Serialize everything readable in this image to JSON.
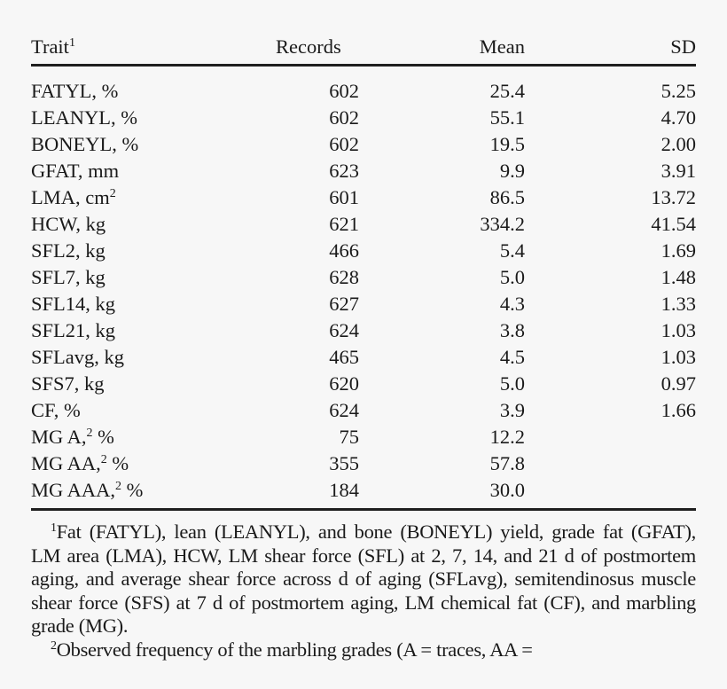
{
  "header": {
    "trait": "Trait",
    "trait_sup": "1",
    "records": "Records",
    "mean": "Mean",
    "sd": "SD"
  },
  "rows": [
    {
      "trait": "FATYL, %",
      "sup": "",
      "suffix": "",
      "records": "602",
      "mean": "25.4",
      "sd": "5.25"
    },
    {
      "trait": "LEANYL, %",
      "sup": "",
      "suffix": "",
      "records": "602",
      "mean": "55.1",
      "sd": "4.70"
    },
    {
      "trait": "BONEYL, %",
      "sup": "",
      "suffix": "",
      "records": "602",
      "mean": "19.5",
      "sd": "2.00"
    },
    {
      "trait": "GFAT, mm",
      "sup": "",
      "suffix": "",
      "records": "623",
      "mean": "9.9",
      "sd": "3.91"
    },
    {
      "trait": "LMA, cm",
      "sup": "2",
      "suffix": "",
      "records": "601",
      "mean": "86.5",
      "sd": "13.72"
    },
    {
      "trait": "HCW, kg",
      "sup": "",
      "suffix": "",
      "records": "621",
      "mean": "334.2",
      "sd": "41.54"
    },
    {
      "trait": "SFL2, kg",
      "sup": "",
      "suffix": "",
      "records": "466",
      "mean": "5.4",
      "sd": "1.69"
    },
    {
      "trait": "SFL7, kg",
      "sup": "",
      "suffix": "",
      "records": "628",
      "mean": "5.0",
      "sd": "1.48"
    },
    {
      "trait": "SFL14, kg",
      "sup": "",
      "suffix": "",
      "records": "627",
      "mean": "4.3",
      "sd": "1.33"
    },
    {
      "trait": "SFL21, kg",
      "sup": "",
      "suffix": "",
      "records": "624",
      "mean": "3.8",
      "sd": "1.03"
    },
    {
      "trait": "SFLavg, kg",
      "sup": "",
      "suffix": "",
      "records": "465",
      "mean": "4.5",
      "sd": "1.03"
    },
    {
      "trait": "SFS7, kg",
      "sup": "",
      "suffix": "",
      "records": "620",
      "mean": "5.0",
      "sd": "0.97"
    },
    {
      "trait": "CF, %",
      "sup": "",
      "suffix": "",
      "records": "624",
      "mean": "3.9",
      "sd": "1.66"
    },
    {
      "trait": "MG A,",
      "sup": "2",
      "suffix": " %",
      "records": "75",
      "mean": "12.2",
      "sd": ""
    },
    {
      "trait": "MG AA,",
      "sup": "2",
      "suffix": " %",
      "records": "355",
      "mean": "57.8",
      "sd": ""
    },
    {
      "trait": "MG AAA,",
      "sup": "2",
      "suffix": " %",
      "records": "184",
      "mean": "30.0",
      "sd": ""
    }
  ],
  "footnotes": [
    {
      "mark": "1",
      "text": "Fat (FATYL), lean (LEANYL), and bone (BONEYL) yield, grade fat (GFAT), LM area (LMA), HCW, LM shear force (SFL) at 2, 7, 14, and 21 d of postmortem aging, and average shear force across d of aging (SFLavg), semitendinosus muscle shear force (SFS) at 7 d of postmortem aging, LM chemical fat (CF), and marbling grade (MG)."
    },
    {
      "mark": "2",
      "text": "Observed frequency of the marbling grades (A = traces, AA ="
    }
  ]
}
